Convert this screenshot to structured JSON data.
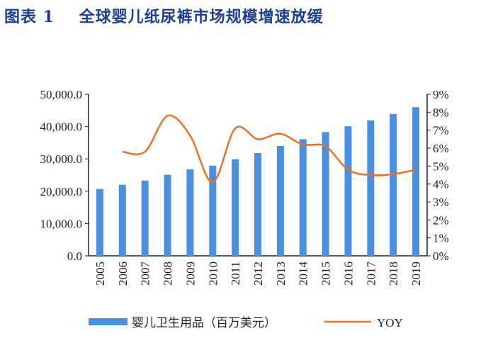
{
  "title": "图表 1    全球婴儿纸尿裤市场规模增速放缓",
  "chart_data": {
    "type": "bar+line",
    "title": "图表 1    全球婴儿纸尿裤市场规模增速放缓",
    "categories": [
      "2005",
      "2006",
      "2007",
      "2008",
      "2009",
      "2010",
      "2011",
      "2012",
      "2013",
      "2014",
      "2015",
      "2016",
      "2017",
      "2018",
      "2019"
    ],
    "series": [
      {
        "name": "婴儿卫生用品（百万美元）",
        "type": "bar",
        "axis": "left",
        "color": "#4a90e2",
        "values": [
          20700,
          22000,
          23300,
          25100,
          26800,
          27900,
          29900,
          31800,
          34000,
          36100,
          38300,
          40100,
          41900,
          43900,
          46000
        ]
      },
      {
        "name": "YOY",
        "type": "line",
        "axis": "right",
        "color": "#f07021",
        "values": [
          null,
          5.8,
          5.8,
          7.8,
          6.7,
          4.1,
          7.1,
          6.5,
          6.8,
          6.2,
          6.1,
          4.8,
          4.5,
          4.55,
          4.8
        ]
      }
    ],
    "left_axis": {
      "ylim": [
        0,
        50000
      ],
      "ticks": [
        "0.0",
        "10,000.0",
        "20,000.0",
        "30,000.0",
        "40,000.0",
        "50,000.0"
      ]
    },
    "right_axis": {
      "ylim": [
        0,
        9
      ],
      "ticks": [
        "0%",
        "1%",
        "2%",
        "3%",
        "4%",
        "5%",
        "6%",
        "7%",
        "8%",
        "9%"
      ]
    },
    "grid": false,
    "legend": "bottom"
  }
}
